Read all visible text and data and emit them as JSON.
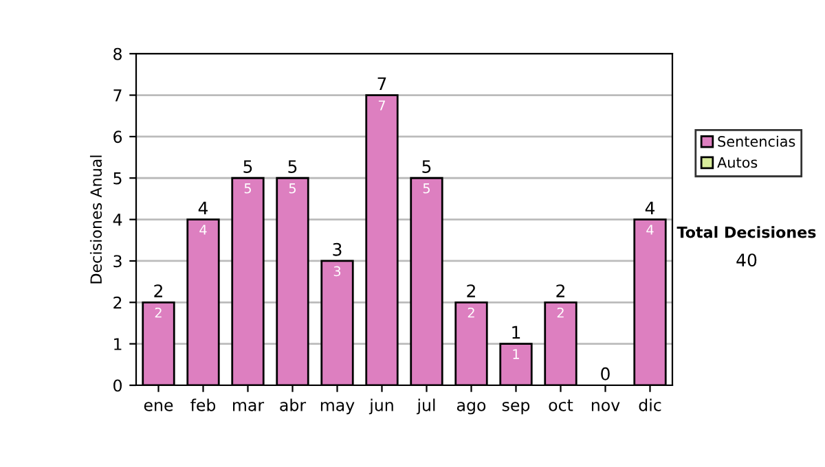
{
  "chart_data": {
    "type": "bar",
    "stacked": true,
    "ylabel": "Decisiones Anual",
    "categories": [
      "ene",
      "feb",
      "mar",
      "abr",
      "may",
      "jun",
      "jul",
      "ago",
      "sep",
      "oct",
      "nov",
      "dic"
    ],
    "series": [
      {
        "name": "Sentencias",
        "color": "#dd7fc0",
        "values": [
          2,
          4,
          5,
          5,
          3,
          7,
          5,
          2,
          1,
          2,
          0,
          4
        ],
        "value_labels": [
          "2",
          "4",
          "5",
          "5",
          "3",
          "7",
          "5",
          "2",
          "1",
          "2",
          null,
          "4"
        ]
      },
      {
        "name": "Autos",
        "color": "#d9ec9c",
        "values": [
          0,
          0,
          0,
          0,
          0,
          0,
          0,
          0,
          0,
          0,
          0,
          0
        ]
      }
    ],
    "totals": [
      "2",
      "4",
      "5",
      "5",
      "3",
      "7",
      "5",
      "2",
      "1",
      "2",
      "0",
      "4"
    ],
    "ylim": [
      0,
      8
    ],
    "yticks": [
      0,
      1,
      2,
      3,
      4,
      5,
      6,
      7,
      8
    ],
    "grid": "y",
    "legend": "right",
    "annotations": [
      "Total Decisiones",
      "40"
    ]
  }
}
